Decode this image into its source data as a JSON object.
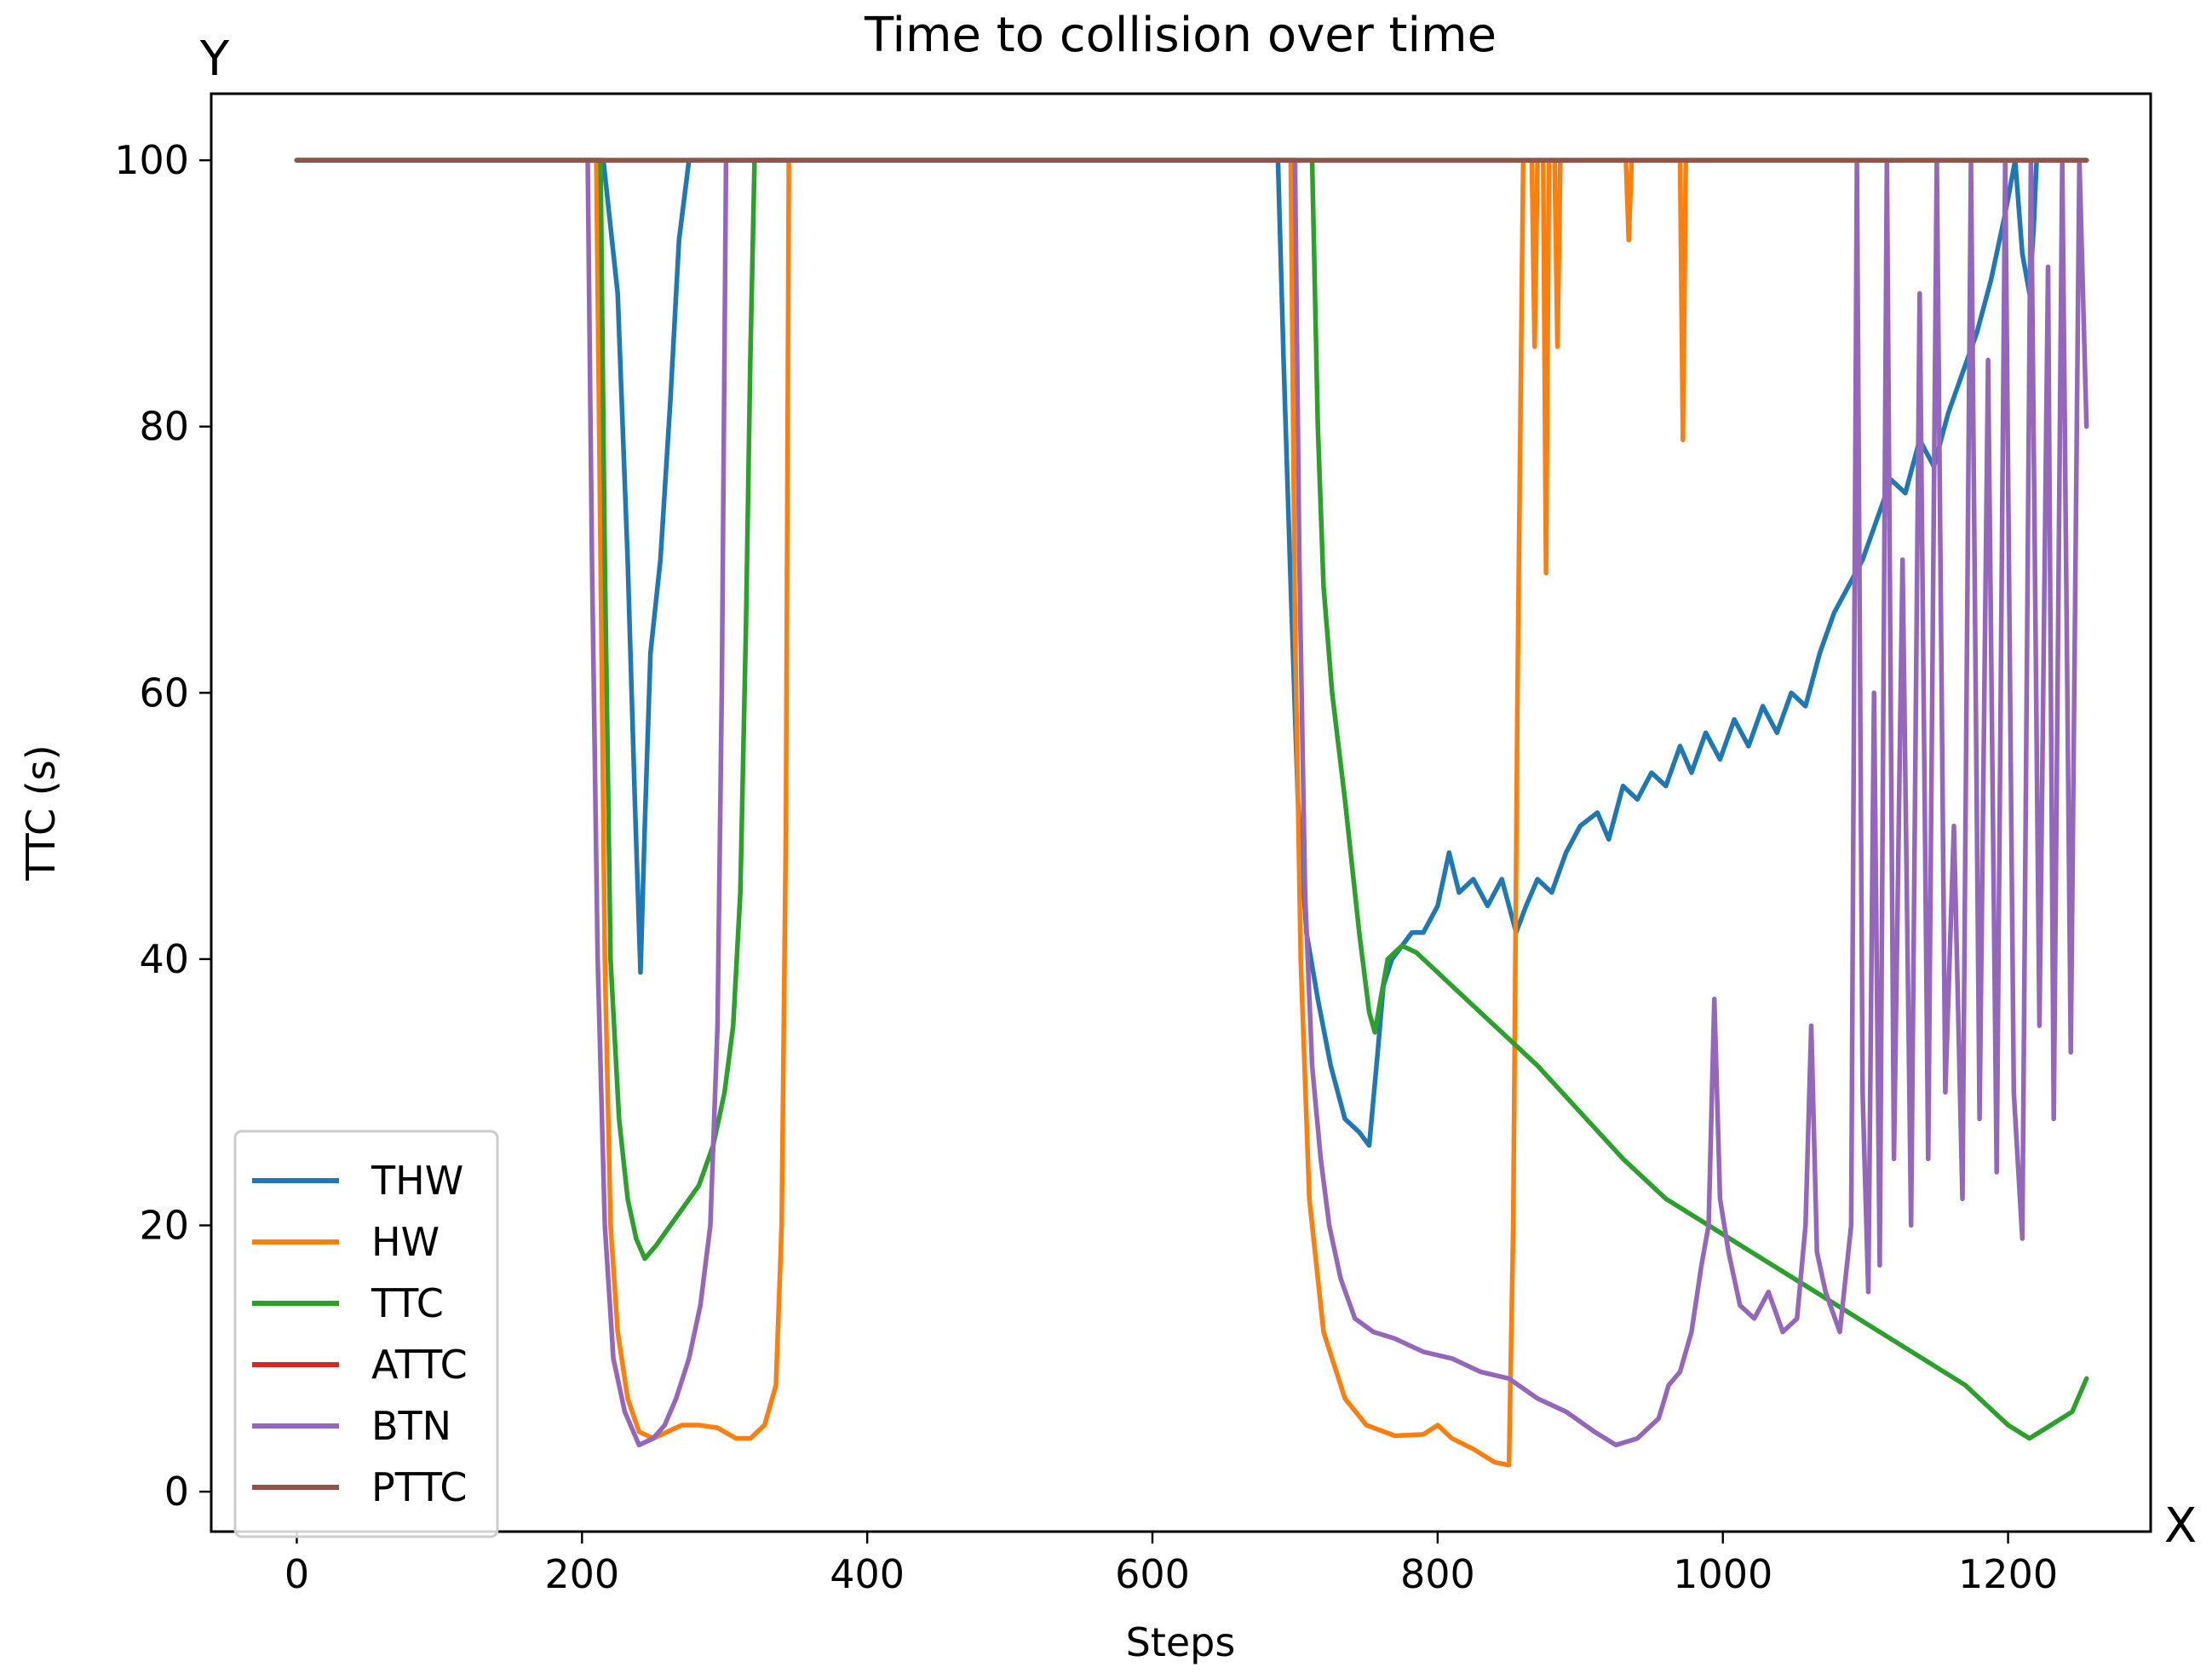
{
  "chart_data": {
    "type": "line",
    "title": "Time to collision over time",
    "xlabel": "Steps",
    "ylabel": "TTC (s)",
    "x_corner_label": "X",
    "y_corner_label": "Y",
    "xlim": [
      -60,
      1300
    ],
    "ylim": [
      -3,
      105
    ],
    "xticks": [
      0,
      200,
      400,
      600,
      800,
      1000,
      1200
    ],
    "yticks": [
      0,
      20,
      40,
      60,
      80,
      100
    ],
    "grid": false,
    "legend_position": "lower-left",
    "series": [
      {
        "name": "THW",
        "color": "#1f77b4",
        "points": [
          [
            0,
            100
          ],
          [
            215,
            100
          ],
          [
            225,
            90
          ],
          [
            232,
            70
          ],
          [
            237,
            52
          ],
          [
            241,
            39
          ],
          [
            244,
            50
          ],
          [
            248,
            63
          ],
          [
            255,
            70
          ],
          [
            262,
            82
          ],
          [
            268,
            94
          ],
          [
            275,
            100
          ],
          [
            688,
            100
          ],
          [
            692,
            85
          ],
          [
            697,
            68
          ],
          [
            702,
            52
          ],
          [
            708,
            42
          ],
          [
            716,
            37
          ],
          [
            725,
            32
          ],
          [
            735,
            28
          ],
          [
            745,
            27
          ],
          [
            752,
            26
          ],
          [
            758,
            33
          ],
          [
            762,
            38
          ],
          [
            768,
            40
          ],
          [
            775,
            41
          ],
          [
            782,
            42
          ],
          [
            790,
            42
          ],
          [
            800,
            44
          ],
          [
            808,
            48
          ],
          [
            815,
            45
          ],
          [
            825,
            46
          ],
          [
            835,
            44
          ],
          [
            845,
            46
          ],
          [
            855,
            42
          ],
          [
            862,
            44
          ],
          [
            870,
            46
          ],
          [
            880,
            45
          ],
          [
            890,
            48
          ],
          [
            900,
            50
          ],
          [
            912,
            51
          ],
          [
            920,
            49
          ],
          [
            930,
            53
          ],
          [
            940,
            52
          ],
          [
            950,
            54
          ],
          [
            960,
            53
          ],
          [
            970,
            56
          ],
          [
            978,
            54
          ],
          [
            988,
            57
          ],
          [
            998,
            55
          ],
          [
            1008,
            58
          ],
          [
            1018,
            56
          ],
          [
            1028,
            59
          ],
          [
            1038,
            57
          ],
          [
            1048,
            60
          ],
          [
            1058,
            59
          ],
          [
            1068,
            63
          ],
          [
            1078,
            66
          ],
          [
            1088,
            68
          ],
          [
            1098,
            70
          ],
          [
            1108,
            73
          ],
          [
            1118,
            76
          ],
          [
            1128,
            75
          ],
          [
            1138,
            79
          ],
          [
            1148,
            77
          ],
          [
            1158,
            81
          ],
          [
            1168,
            84
          ],
          [
            1178,
            87
          ],
          [
            1188,
            91
          ],
          [
            1198,
            96
          ],
          [
            1205,
            100
          ],
          [
            1210,
            93
          ],
          [
            1215,
            90
          ],
          [
            1218,
            95
          ],
          [
            1220,
            100
          ],
          [
            1255,
            100
          ]
        ]
      },
      {
        "name": "HW",
        "color": "#ff7f0e",
        "points": [
          [
            0,
            100
          ],
          [
            210,
            100
          ],
          [
            213,
            70
          ],
          [
            216,
            40
          ],
          [
            220,
            20
          ],
          [
            225,
            12
          ],
          [
            232,
            7
          ],
          [
            240,
            4.5
          ],
          [
            250,
            4
          ],
          [
            260,
            4.5
          ],
          [
            270,
            5
          ],
          [
            282,
            5
          ],
          [
            295,
            4.8
          ],
          [
            308,
            4
          ],
          [
            318,
            4
          ],
          [
            328,
            5
          ],
          [
            336,
            8
          ],
          [
            340,
            20
          ],
          [
            343,
            50
          ],
          [
            345,
            100
          ],
          [
            697,
            100
          ],
          [
            700,
            65
          ],
          [
            704,
            40
          ],
          [
            710,
            22
          ],
          [
            720,
            12
          ],
          [
            735,
            7
          ],
          [
            750,
            5
          ],
          [
            770,
            4.2
          ],
          [
            790,
            4.3
          ],
          [
            800,
            5
          ],
          [
            810,
            4
          ],
          [
            825,
            3.2
          ],
          [
            840,
            2.2
          ],
          [
            850,
            2
          ],
          [
            853,
            20
          ],
          [
            856,
            60
          ],
          [
            860,
            100
          ],
          [
            866,
            100
          ],
          [
            868,
            86
          ],
          [
            870,
            100
          ],
          [
            874,
            100
          ],
          [
            876,
            69
          ],
          [
            878,
            100
          ],
          [
            882,
            100
          ],
          [
            884,
            86
          ],
          [
            886,
            100
          ],
          [
            932,
            100
          ],
          [
            934,
            94
          ],
          [
            936,
            100
          ],
          [
            970,
            100
          ],
          [
            972,
            79
          ],
          [
            974,
            100
          ],
          [
            1255,
            100
          ]
        ]
      },
      {
        "name": "TTC",
        "color": "#2ca02c",
        "points": [
          [
            0,
            100
          ],
          [
            213,
            100
          ],
          [
            216,
            70
          ],
          [
            220,
            40
          ],
          [
            226,
            28
          ],
          [
            232,
            22
          ],
          [
            238,
            19
          ],
          [
            244,
            17.5
          ],
          [
            252,
            18.5
          ],
          [
            262,
            20
          ],
          [
            272,
            21.5
          ],
          [
            282,
            23
          ],
          [
            292,
            26
          ],
          [
            300,
            30
          ],
          [
            306,
            35
          ],
          [
            311,
            45
          ],
          [
            315,
            65
          ],
          [
            318,
            85
          ],
          [
            321,
            100
          ],
          [
            712,
            100
          ],
          [
            716,
            80
          ],
          [
            720,
            68
          ],
          [
            726,
            60
          ],
          [
            735,
            52
          ],
          [
            745,
            42
          ],
          [
            752,
            36
          ],
          [
            756,
            34.5
          ],
          [
            760,
            37
          ],
          [
            765,
            40
          ],
          [
            775,
            41
          ],
          [
            785,
            40.5
          ],
          [
            810,
            38
          ],
          [
            840,
            35
          ],
          [
            870,
            32
          ],
          [
            900,
            28.5
          ],
          [
            930,
            25
          ],
          [
            960,
            22
          ],
          [
            990,
            20
          ],
          [
            1020,
            18
          ],
          [
            1050,
            16
          ],
          [
            1080,
            14
          ],
          [
            1110,
            12
          ],
          [
            1140,
            10
          ],
          [
            1170,
            8
          ],
          [
            1200,
            5
          ],
          [
            1215,
            4
          ],
          [
            1230,
            5
          ],
          [
            1245,
            6
          ],
          [
            1255,
            8.5
          ]
        ]
      },
      {
        "name": "ATTC",
        "color": "#d62728",
        "points": [
          [
            0,
            100
          ],
          [
            1255,
            100
          ]
        ]
      },
      {
        "name": "BTN",
        "color": "#9467bd",
        "points": [
          [
            0,
            100
          ],
          [
            204,
            100
          ],
          [
            207,
            70
          ],
          [
            211,
            40
          ],
          [
            216,
            20
          ],
          [
            222,
            10
          ],
          [
            230,
            6
          ],
          [
            240,
            3.5
          ],
          [
            250,
            4
          ],
          [
            258,
            5
          ],
          [
            266,
            7
          ],
          [
            275,
            10
          ],
          [
            283,
            14
          ],
          [
            290,
            20
          ],
          [
            295,
            35
          ],
          [
            298,
            60
          ],
          [
            301,
            100
          ],
          [
            700,
            100
          ],
          [
            703,
            70
          ],
          [
            707,
            45
          ],
          [
            712,
            32
          ],
          [
            718,
            25
          ],
          [
            724,
            20
          ],
          [
            732,
            16
          ],
          [
            742,
            13
          ],
          [
            755,
            12
          ],
          [
            770,
            11.5
          ],
          [
            790,
            10.5
          ],
          [
            810,
            10
          ],
          [
            830,
            9
          ],
          [
            850,
            8.5
          ],
          [
            870,
            7
          ],
          [
            890,
            6
          ],
          [
            910,
            4.5
          ],
          [
            925,
            3.5
          ],
          [
            940,
            4
          ],
          [
            955,
            5.5
          ],
          [
            962,
            8
          ],
          [
            970,
            9
          ],
          [
            978,
            12
          ],
          [
            985,
            17
          ],
          [
            990,
            20
          ],
          [
            994,
            37
          ],
          [
            998,
            22
          ],
          [
            1004,
            18
          ],
          [
            1012,
            14
          ],
          [
            1022,
            13
          ],
          [
            1032,
            15
          ],
          [
            1042,
            12
          ],
          [
            1052,
            13
          ],
          [
            1058,
            20
          ],
          [
            1062,
            35
          ],
          [
            1066,
            18
          ],
          [
            1072,
            15
          ],
          [
            1082,
            12
          ],
          [
            1090,
            20
          ],
          [
            1094,
            100
          ],
          [
            1098,
            30
          ],
          [
            1102,
            15
          ],
          [
            1106,
            60
          ],
          [
            1110,
            17
          ],
          [
            1115,
            100
          ],
          [
            1120,
            25
          ],
          [
            1126,
            70
          ],
          [
            1132,
            20
          ],
          [
            1138,
            90
          ],
          [
            1144,
            25
          ],
          [
            1150,
            100
          ],
          [
            1156,
            30
          ],
          [
            1162,
            50
          ],
          [
            1168,
            22
          ],
          [
            1174,
            100
          ],
          [
            1180,
            28
          ],
          [
            1186,
            85
          ],
          [
            1192,
            24
          ],
          [
            1198,
            100
          ],
          [
            1204,
            30
          ],
          [
            1210,
            19
          ],
          [
            1216,
            100
          ],
          [
            1222,
            35
          ],
          [
            1228,
            92
          ],
          [
            1232,
            28
          ],
          [
            1238,
            100
          ],
          [
            1244,
            33
          ],
          [
            1250,
            100
          ],
          [
            1255,
            80
          ]
        ]
      },
      {
        "name": "PTTC",
        "color": "#8c564b",
        "points": [
          [
            0,
            100
          ],
          [
            1255,
            100
          ]
        ]
      }
    ]
  }
}
